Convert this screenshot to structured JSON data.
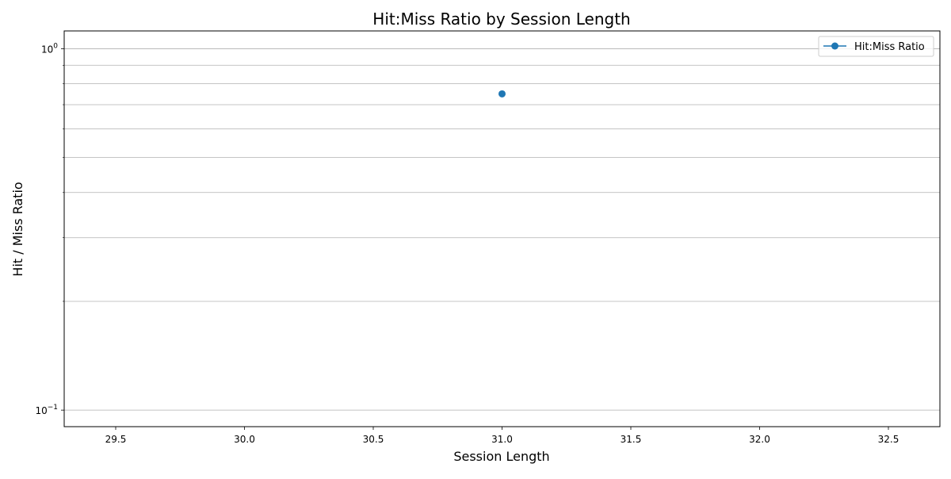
{
  "chart_data": {
    "type": "line",
    "title": "Hit:Miss Ratio by Session Length",
    "xlabel": "Session Length",
    "ylabel": "Hit / Miss Ratio",
    "xlim": [
      29.3,
      32.7
    ],
    "ylim": [
      0.09,
      1.12
    ],
    "yscale": "log",
    "x_ticks": [
      29.5,
      30.0,
      30.5,
      31.0,
      31.5,
      32.0,
      32.5
    ],
    "x_tick_labels": [
      "29.5",
      "30.0",
      "30.5",
      "31.0",
      "31.5",
      "32.0",
      "32.5"
    ],
    "y_major_ticks": [
      {
        "value": 0.1,
        "base": "10",
        "exp": "−1"
      },
      {
        "value": 1.0,
        "base": "10",
        "exp": "0"
      }
    ],
    "y_minor_ticks": [
      0.2,
      0.3,
      0.4,
      0.5,
      0.6,
      0.7,
      0.8,
      0.9
    ],
    "grid": "y-axis (major and minor)",
    "legend_position": "top-right",
    "series": [
      {
        "name": "Hit:Miss Ratio",
        "color": "#1f77b4",
        "marker": "circle",
        "x": [
          31
        ],
        "y": [
          0.75
        ]
      }
    ]
  }
}
